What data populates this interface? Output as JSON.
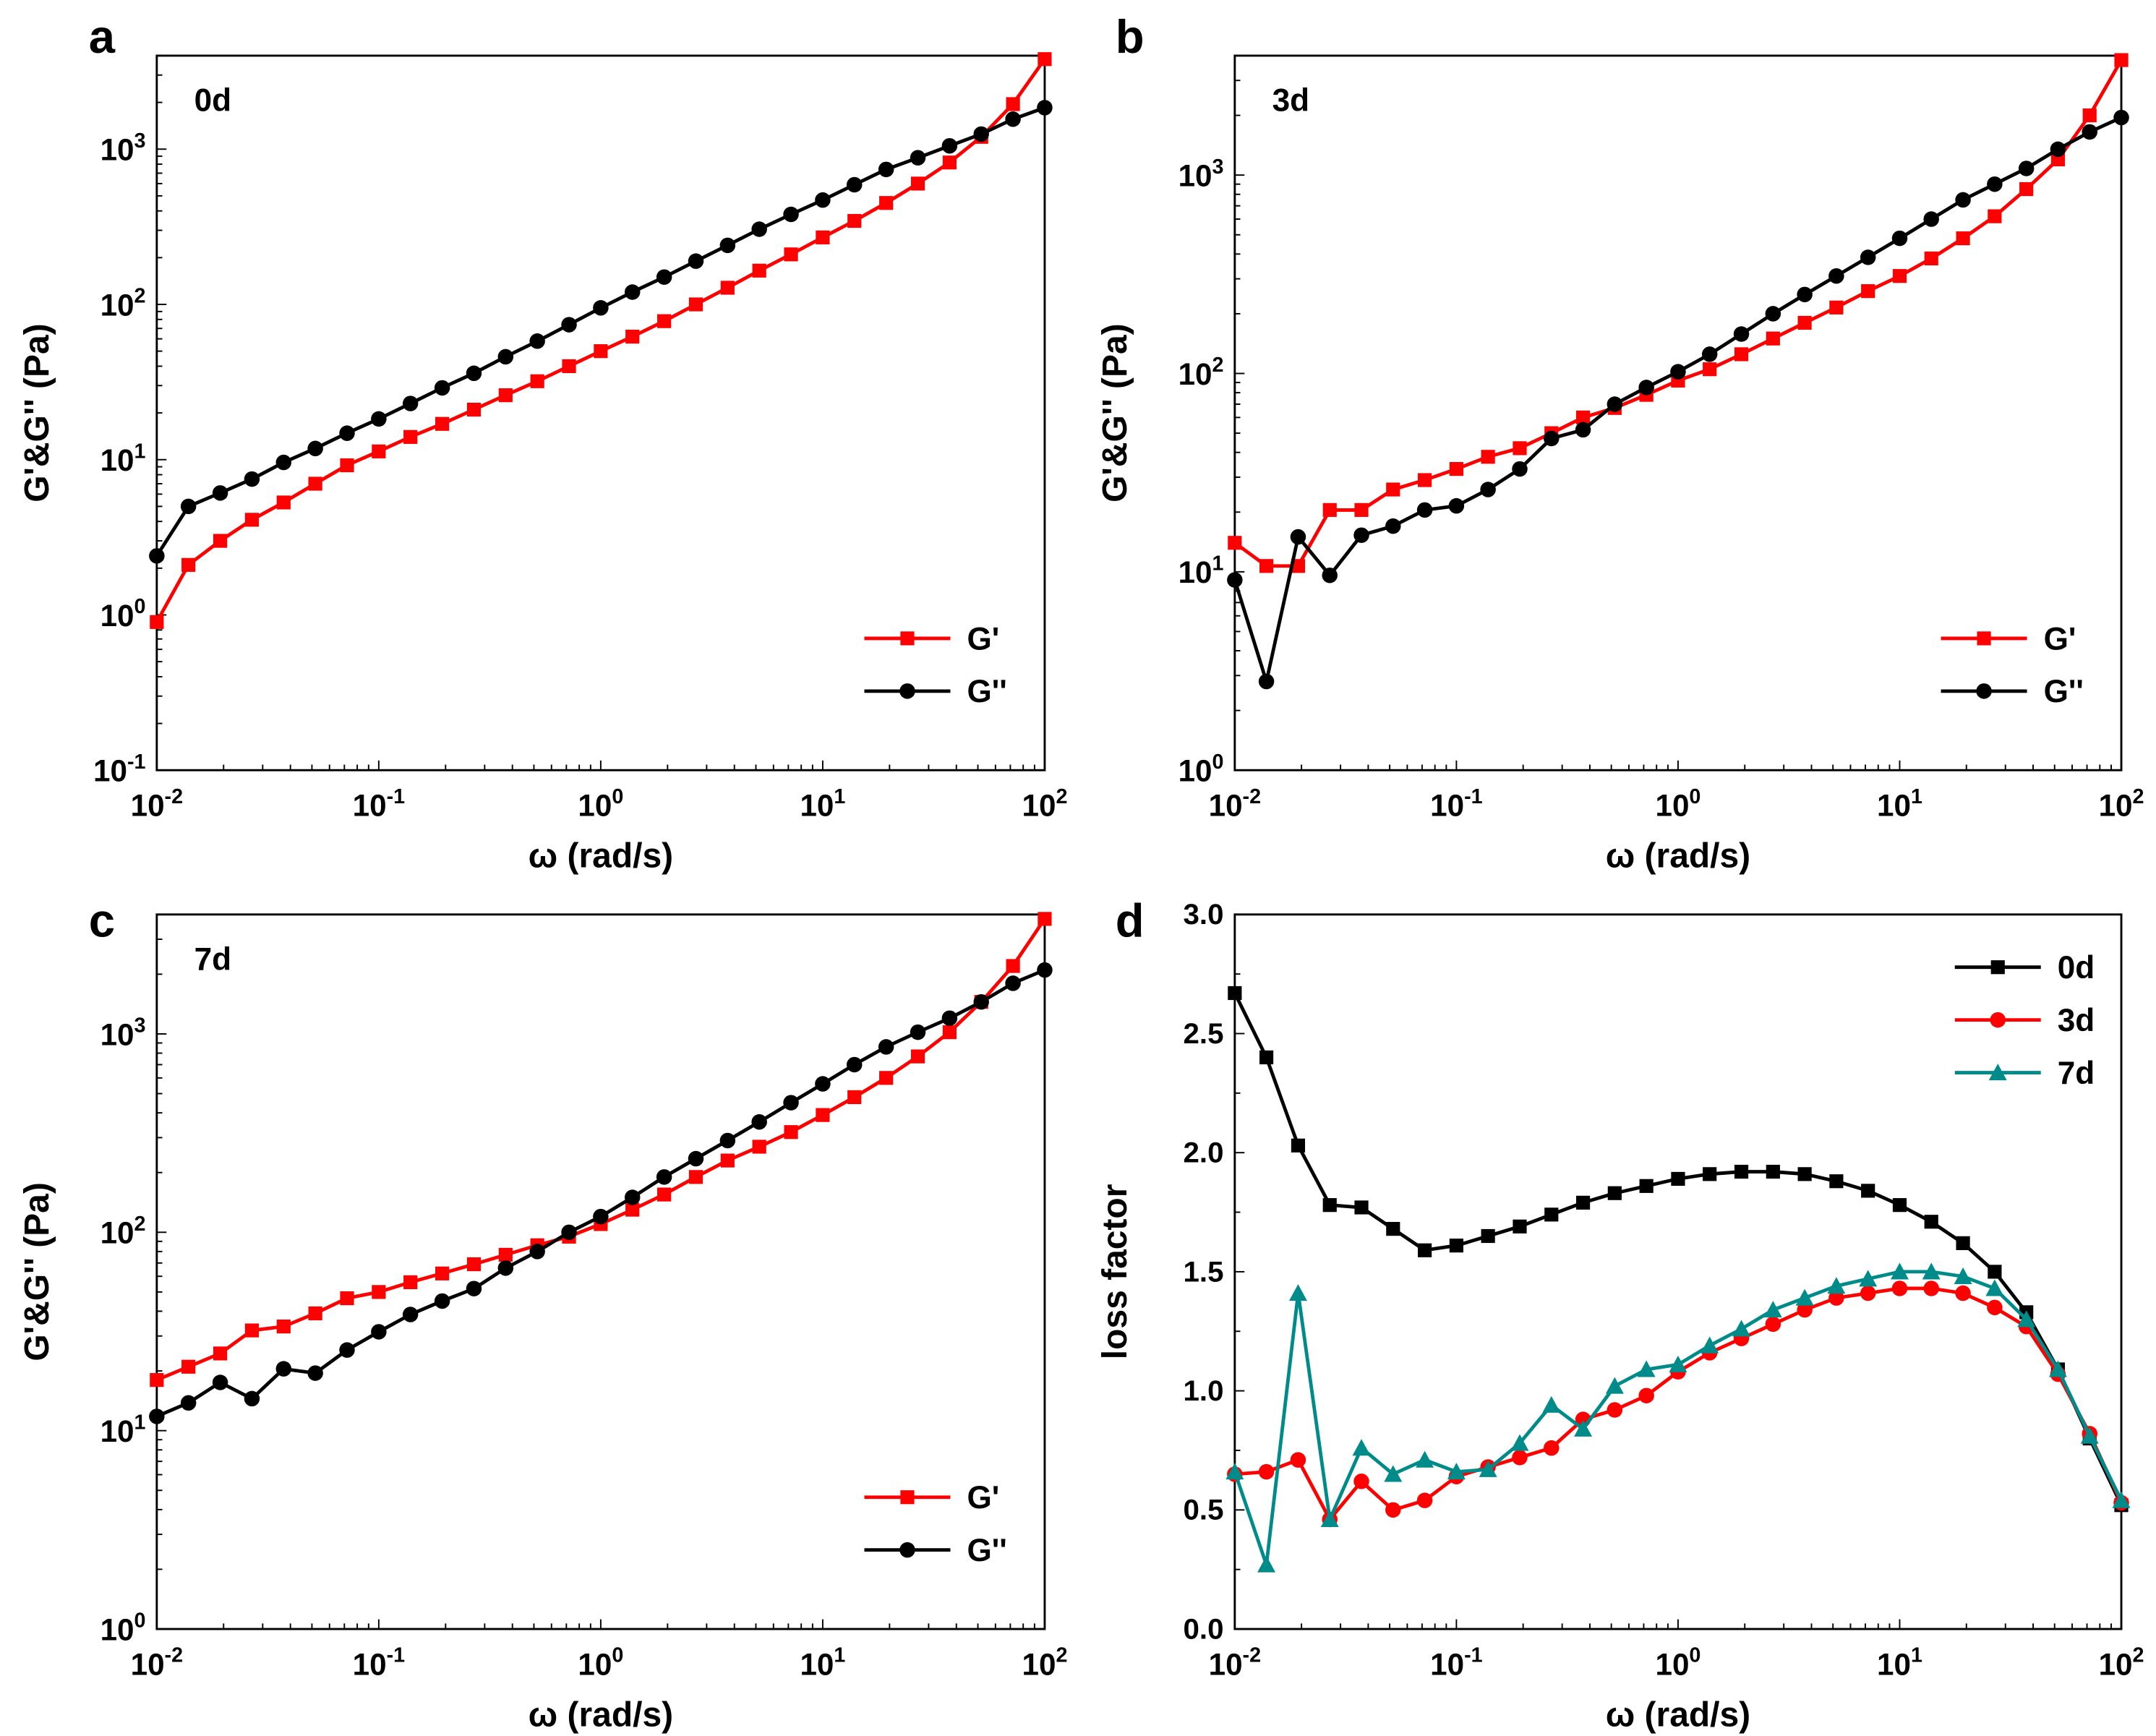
{
  "colors": {
    "g_prime": "#ff0000",
    "g_double": "#000000",
    "d0": "#000000",
    "d3": "#ff0000",
    "d7": "#008b8b"
  },
  "chart_data": [
    {
      "type": "line",
      "panel": "a",
      "annotation": "0d",
      "xscale": "log",
      "yscale": "log",
      "xlim": [
        0.01,
        100
      ],
      "ylim": [
        0.1,
        4000
      ],
      "xlabel": "ω (rad/s)",
      "ylabel": "G'&G'' (Pa)",
      "xticks": [
        {
          "base": "10",
          "exp": "-2"
        },
        {
          "base": "10",
          "exp": "-1"
        },
        {
          "base": "10",
          "exp": "0"
        },
        {
          "base": "10",
          "exp": "1"
        },
        {
          "base": "10",
          "exp": "2"
        }
      ],
      "yticks": [
        {
          "base": "10",
          "exp": "-1",
          "value": 0.1
        },
        {
          "base": "10",
          "exp": "0",
          "value": 1
        },
        {
          "base": "10",
          "exp": "1",
          "value": 10
        },
        {
          "base": "10",
          "exp": "2",
          "value": 100
        },
        {
          "base": "10",
          "exp": "3",
          "value": 1000
        }
      ],
      "legend": "bottom-right",
      "series": [
        {
          "name": "G'",
          "marker": "square",
          "color": "#ff0000",
          "x": [
            0.01,
            0.01389,
            0.01931,
            0.02683,
            0.03728,
            0.05179,
            0.07197,
            0.1,
            0.1389,
            0.1931,
            0.2683,
            0.3728,
            0.5179,
            0.7197,
            1,
            1.389,
            1.931,
            2.683,
            3.728,
            5.179,
            7.197,
            10,
            13.89,
            19.31,
            26.83,
            37.28,
            51.79,
            71.97,
            100
          ],
          "y": [
            0.9,
            2.1,
            3.0,
            4.1,
            5.3,
            7.0,
            9.2,
            11.3,
            14,
            17,
            21,
            26,
            32,
            40,
            50,
            62,
            78,
            100,
            128,
            165,
            210,
            270,
            345,
            450,
            600,
            820,
            1200,
            1950,
            3800
          ]
        },
        {
          "name": "G''",
          "marker": "circle",
          "color": "#000000",
          "x": [
            0.01,
            0.01389,
            0.01931,
            0.02683,
            0.03728,
            0.05179,
            0.07197,
            0.1,
            0.1389,
            0.1931,
            0.2683,
            0.3728,
            0.5179,
            0.7197,
            1,
            1.389,
            1.931,
            2.683,
            3.728,
            5.179,
            7.197,
            10,
            13.89,
            19.31,
            26.83,
            37.28,
            51.79,
            71.97,
            100
          ],
          "y": [
            2.4,
            5.0,
            6.1,
            7.5,
            9.6,
            11.8,
            14.8,
            18.3,
            23,
            29,
            36,
            46,
            58,
            74,
            95,
            120,
            150,
            190,
            240,
            305,
            380,
            470,
            590,
            740,
            880,
            1050,
            1250,
            1560,
            1850
          ]
        }
      ]
    },
    {
      "type": "line",
      "panel": "b",
      "annotation": "3d",
      "xscale": "log",
      "yscale": "log",
      "xlim": [
        0.01,
        100
      ],
      "ylim": [
        1,
        4000
      ],
      "xlabel": "ω (rad/s)",
      "ylabel": "G'&G'' (Pa)",
      "xticks": [
        {
          "base": "10",
          "exp": "-2"
        },
        {
          "base": "10",
          "exp": "-1"
        },
        {
          "base": "10",
          "exp": "0"
        },
        {
          "base": "10",
          "exp": "1"
        },
        {
          "base": "10",
          "exp": "2"
        }
      ],
      "yticks": [
        {
          "base": "10",
          "exp": "0",
          "value": 1
        },
        {
          "base": "10",
          "exp": "1",
          "value": 10
        },
        {
          "base": "10",
          "exp": "2",
          "value": 100
        },
        {
          "base": "10",
          "exp": "3",
          "value": 1000
        }
      ],
      "legend": "bottom-right",
      "series": [
        {
          "name": "G'",
          "marker": "square",
          "color": "#ff0000",
          "x": [
            0.01,
            0.01389,
            0.01931,
            0.02683,
            0.03728,
            0.05179,
            0.07197,
            0.1,
            0.1389,
            0.1931,
            0.2683,
            0.3728,
            0.5179,
            0.7197,
            1,
            1.389,
            1.931,
            2.683,
            3.728,
            5.179,
            7.197,
            10,
            13.89,
            19.31,
            26.83,
            37.28,
            51.79,
            71.97,
            100
          ],
          "y": [
            14,
            10.7,
            10.7,
            20.5,
            20.5,
            26,
            29,
            33,
            38,
            42,
            50,
            60,
            67,
            78,
            92,
            105,
            125,
            150,
            180,
            215,
            260,
            310,
            380,
            480,
            620,
            850,
            1200,
            2000,
            3800
          ]
        },
        {
          "name": "G''",
          "marker": "circle",
          "color": "#000000",
          "x": [
            0.01,
            0.01389,
            0.01931,
            0.02683,
            0.03728,
            0.05179,
            0.07197,
            0.1,
            0.1389,
            0.1931,
            0.2683,
            0.3728,
            0.5179,
            0.7197,
            1,
            1.389,
            1.931,
            2.683,
            3.728,
            5.179,
            7.197,
            10,
            13.89,
            19.31,
            26.83,
            37.28,
            51.79,
            71.97,
            100
          ],
          "y": [
            9.1,
            2.8,
            15,
            9.6,
            15.3,
            17,
            20.5,
            21.5,
            26,
            33,
            47,
            52,
            70,
            85,
            102,
            125,
            158,
            200,
            250,
            310,
            385,
            480,
            600,
            750,
            900,
            1080,
            1350,
            1650,
            1950
          ]
        }
      ]
    },
    {
      "type": "line",
      "panel": "c",
      "annotation": "7d",
      "xscale": "log",
      "yscale": "log",
      "xlim": [
        0.01,
        100
      ],
      "ylim": [
        1,
        4000
      ],
      "xlabel": "ω (rad/s)",
      "ylabel": "G'&G'' (Pa)",
      "xticks": [
        {
          "base": "10",
          "exp": "-2"
        },
        {
          "base": "10",
          "exp": "-1"
        },
        {
          "base": "10",
          "exp": "0"
        },
        {
          "base": "10",
          "exp": "1"
        },
        {
          "base": "10",
          "exp": "2"
        }
      ],
      "yticks": [
        {
          "base": "10",
          "exp": "0",
          "value": 1
        },
        {
          "base": "10",
          "exp": "1",
          "value": 10
        },
        {
          "base": "10",
          "exp": "2",
          "value": 100
        },
        {
          "base": "10",
          "exp": "3",
          "value": 1000
        }
      ],
      "legend": "bottom-right",
      "series": [
        {
          "name": "G'",
          "marker": "square",
          "color": "#ff0000",
          "x": [
            0.01,
            0.01389,
            0.01931,
            0.02683,
            0.03728,
            0.05179,
            0.07197,
            0.1,
            0.1389,
            0.1931,
            0.2683,
            0.3728,
            0.5179,
            0.7197,
            1,
            1.389,
            1.931,
            2.683,
            3.728,
            5.179,
            7.197,
            10,
            13.89,
            19.31,
            26.83,
            37.28,
            51.79,
            71.97,
            100
          ],
          "y": [
            18,
            21,
            24.5,
            32,
            33.5,
            39,
            46.5,
            50,
            56,
            62,
            69,
            77,
            86,
            95,
            110,
            130,
            155,
            190,
            230,
            270,
            320,
            390,
            480,
            600,
            770,
            1020,
            1450,
            2200,
            3800
          ]
        },
        {
          "name": "G''",
          "marker": "circle",
          "color": "#000000",
          "x": [
            0.01,
            0.01389,
            0.01931,
            0.02683,
            0.03728,
            0.05179,
            0.07197,
            0.1,
            0.1389,
            0.1931,
            0.2683,
            0.3728,
            0.5179,
            0.7197,
            1,
            1.389,
            1.931,
            2.683,
            3.728,
            5.179,
            7.197,
            10,
            13.89,
            19.31,
            26.83,
            37.28,
            51.79,
            71.97,
            100
          ],
          "y": [
            11.8,
            13.8,
            17.5,
            14.5,
            20.5,
            19.5,
            25.5,
            31.5,
            38.5,
            45,
            52,
            66,
            80,
            100,
            120,
            150,
            190,
            235,
            290,
            360,
            450,
            560,
            700,
            860,
            1020,
            1200,
            1450,
            1800,
            2100
          ]
        }
      ]
    },
    {
      "type": "line",
      "panel": "d",
      "xscale": "log",
      "yscale": "linear",
      "xlim": [
        0.01,
        100
      ],
      "ylim": [
        0,
        3.0
      ],
      "xlabel": "ω (rad/s)",
      "ylabel": "loss factor",
      "xticks": [
        {
          "base": "10",
          "exp": "-2"
        },
        {
          "base": "10",
          "exp": "-1"
        },
        {
          "base": "10",
          "exp": "0"
        },
        {
          "base": "10",
          "exp": "1"
        },
        {
          "base": "10",
          "exp": "2"
        }
      ],
      "yticks": [
        "0.0",
        "0.5",
        "1.0",
        "1.5",
        "2.0",
        "2.5",
        "3.0"
      ],
      "legend": "top-right",
      "series": [
        {
          "name": "0d",
          "marker": "square",
          "color": "#000000",
          "x": [
            0.01,
            0.01389,
            0.01931,
            0.02683,
            0.03728,
            0.05179,
            0.07197,
            0.1,
            0.1389,
            0.1931,
            0.2683,
            0.3728,
            0.5179,
            0.7197,
            1,
            1.389,
            1.931,
            2.683,
            3.728,
            5.179,
            7.197,
            10,
            13.89,
            19.31,
            26.83,
            37.28,
            51.79,
            71.97,
            100
          ],
          "y": [
            2.67,
            2.4,
            2.03,
            1.78,
            1.77,
            1.68,
            1.59,
            1.61,
            1.65,
            1.69,
            1.74,
            1.79,
            1.83,
            1.86,
            1.89,
            1.91,
            1.92,
            1.92,
            1.91,
            1.88,
            1.84,
            1.78,
            1.71,
            1.62,
            1.5,
            1.33,
            1.09,
            0.8,
            0.52
          ]
        },
        {
          "name": "3d",
          "marker": "circle",
          "color": "#ff0000",
          "x": [
            0.01,
            0.01389,
            0.01931,
            0.02683,
            0.03728,
            0.05179,
            0.07197,
            0.1,
            0.1389,
            0.1931,
            0.2683,
            0.3728,
            0.5179,
            0.7197,
            1,
            1.389,
            1.931,
            2.683,
            3.728,
            5.179,
            7.197,
            10,
            13.89,
            19.31,
            26.83,
            37.28,
            51.79,
            71.97,
            100
          ],
          "y": [
            0.65,
            0.66,
            0.71,
            0.46,
            0.62,
            0.5,
            0.54,
            0.64,
            0.68,
            0.72,
            0.76,
            0.88,
            0.92,
            0.98,
            1.08,
            1.16,
            1.22,
            1.28,
            1.34,
            1.39,
            1.41,
            1.43,
            1.43,
            1.41,
            1.35,
            1.27,
            1.07,
            0.82,
            0.53
          ]
        },
        {
          "name": "7d",
          "marker": "triangle",
          "color": "#008b8b",
          "x": [
            0.01,
            0.01389,
            0.01931,
            0.02683,
            0.03728,
            0.05179,
            0.07197,
            0.1,
            0.1389,
            0.1931,
            0.2683,
            0.3728,
            0.5179,
            0.7197,
            1,
            1.389,
            1.931,
            2.683,
            3.728,
            5.179,
            7.197,
            10,
            13.89,
            19.31,
            26.83,
            37.28,
            51.79,
            71.97,
            100
          ],
          "y": [
            0.66,
            0.27,
            1.41,
            0.46,
            0.76,
            0.65,
            0.71,
            0.66,
            0.67,
            0.78,
            0.94,
            0.84,
            1.02,
            1.09,
            1.11,
            1.19,
            1.26,
            1.34,
            1.39,
            1.44,
            1.47,
            1.5,
            1.5,
            1.48,
            1.43,
            1.3,
            1.09,
            0.81,
            0.54
          ]
        }
      ]
    }
  ]
}
